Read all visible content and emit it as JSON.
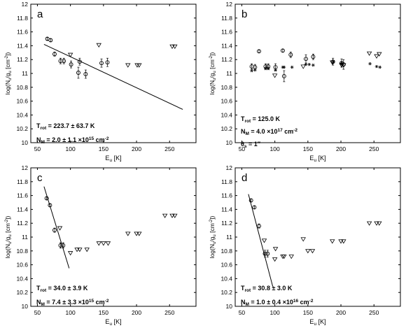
{
  "chart_data": [
    {
      "type": "scatter",
      "panel_label": "a",
      "xlabel": "E_u [K]",
      "ylabel": "log(N_u/g_u [cm^-2])",
      "xlim": [
        40,
        290
      ],
      "ylim": [
        10,
        12
      ],
      "x_ticks": [
        50,
        100,
        150,
        200,
        250
      ],
      "y_ticks": [
        10,
        10.2,
        10.4,
        10.6,
        10.8,
        11,
        11.2,
        11.4,
        11.6,
        11.8,
        12
      ],
      "series": [
        {
          "marker": "circle",
          "points": [
            {
              "x": 65,
              "y": 11.5,
              "err": 0.02
            },
            {
              "x": 70,
              "y": 11.48,
              "err": 0.02
            },
            {
              "x": 76,
              "y": 11.28,
              "err": 0.03
            },
            {
              "x": 85,
              "y": 11.18,
              "err": 0.04
            },
            {
              "x": 90,
              "y": 11.18,
              "err": 0.04
            },
            {
              "x": 101,
              "y": 11.13,
              "err": 0.05
            },
            {
              "x": 112,
              "y": 11.01,
              "err": 0.08
            },
            {
              "x": 114,
              "y": 11.17,
              "err": 0.05
            },
            {
              "x": 123,
              "y": 10.99,
              "err": 0.06
            },
            {
              "x": 147,
              "y": 11.15,
              "err": 0.06
            },
            {
              "x": 156,
              "y": 11.16,
              "err": 0.06
            }
          ]
        },
        {
          "marker": "triangle-down",
          "points": [
            {
              "x": 100,
              "y": 11.27
            },
            {
              "x": 143,
              "y": 11.41
            },
            {
              "x": 187,
              "y": 11.12
            },
            {
              "x": 201,
              "y": 11.12
            },
            {
              "x": 204,
              "y": 11.12
            },
            {
              "x": 254,
              "y": 11.39
            },
            {
              "x": 258,
              "y": 11.39
            }
          ]
        }
      ],
      "fit_line": {
        "x": [
          60,
          270
        ],
        "y": [
          11.42,
          10.48
        ]
      },
      "annotation": [
        {
          "label": "T",
          "sub": "rot",
          "value": " = 223.7 ± 63.7 K"
        },
        {
          "label": "N",
          "sub": "M",
          "value": " = 2.0 ± 1.1 ×10",
          "sup": "15",
          "unit": " cm",
          "unit_sup": "-2"
        }
      ]
    },
    {
      "type": "scatter",
      "panel_label": "b",
      "xlabel": "E_u [K]",
      "ylabel": "log(N_u/g_u [cm^-2])",
      "xlim": [
        40,
        290
      ],
      "ylim": [
        10,
        12
      ],
      "x_ticks": [
        50,
        100,
        150,
        200,
        250
      ],
      "y_ticks": [
        10,
        10.2,
        10.4,
        10.6,
        10.8,
        11,
        11.2,
        11.4,
        11.6,
        11.8,
        12
      ],
      "series": [
        {
          "marker": "circle",
          "points": [
            {
              "x": 65,
              "y": 11.1,
              "err": 0.04
            },
            {
              "x": 70,
              "y": 11.09,
              "err": 0.04
            },
            {
              "x": 76,
              "y": 11.32,
              "err": 0.02
            },
            {
              "x": 86,
              "y": 11.1,
              "err": 0.04
            },
            {
              "x": 90,
              "y": 11.1,
              "err": 0.04
            },
            {
              "x": 101,
              "y": 11.09,
              "err": 0.05
            },
            {
              "x": 112,
              "y": 11.33,
              "err": 0.02
            },
            {
              "x": 114,
              "y": 10.96,
              "err": 0.08
            },
            {
              "x": 124,
              "y": 11.27,
              "err": 0.04
            },
            {
              "x": 147,
              "y": 11.21,
              "err": 0.06
            },
            {
              "x": 158,
              "y": 11.24,
              "err": 0.04
            },
            {
              "x": 188,
              "y": 11.17,
              "err": 0.05
            },
            {
              "x": 201,
              "y": 11.15,
              "err": 0.06
            },
            {
              "x": 204,
              "y": 11.13,
              "err": 0.07
            }
          ]
        },
        {
          "marker": "triangle-down",
          "points": [
            {
              "x": 100,
              "y": 10.97
            },
            {
              "x": 143,
              "y": 11.1
            },
            {
              "x": 187,
              "y": 11.16
            },
            {
              "x": 201,
              "y": 11.12
            },
            {
              "x": 204,
              "y": 11.12
            },
            {
              "x": 243,
              "y": 11.29
            },
            {
              "x": 254,
              "y": 11.25
            },
            {
              "x": 258,
              "y": 11.28
            }
          ]
        },
        {
          "marker": "star",
          "points": [
            {
              "x": 65,
              "y": 11.04
            },
            {
              "x": 70,
              "y": 11.05
            },
            {
              "x": 86,
              "y": 11.07
            },
            {
              "x": 90,
              "y": 11.07
            },
            {
              "x": 101,
              "y": 11.05
            },
            {
              "x": 112,
              "y": 11.09
            },
            {
              "x": 114,
              "y": 11.09
            },
            {
              "x": 126,
              "y": 11.09
            },
            {
              "x": 147,
              "y": 11.13
            },
            {
              "x": 152,
              "y": 11.13
            },
            {
              "x": 158,
              "y": 11.12
            },
            {
              "x": 188,
              "y": 11.16
            },
            {
              "x": 201,
              "y": 11.15
            },
            {
              "x": 244,
              "y": 11.14
            },
            {
              "x": 254,
              "y": 11.1
            },
            {
              "x": 259,
              "y": 11.09
            }
          ]
        }
      ],
      "annotation": [
        {
          "label": "T",
          "sub": "rot",
          "value": " = 125.0 K"
        },
        {
          "label": "N",
          "sub": "M",
          "value": " = 4.0 ×10",
          "sup": "17",
          "unit": " cm",
          "unit_sup": "-2"
        },
        {
          "label": "θ",
          "sub": "s",
          "value": " = 1′′"
        }
      ]
    },
    {
      "type": "scatter",
      "panel_label": "c",
      "xlabel": "E_u [K]",
      "ylabel": "log(N_u/g_u [cm^-2])",
      "xlim": [
        40,
        290
      ],
      "ylim": [
        10,
        12
      ],
      "x_ticks": [
        50,
        100,
        150,
        200,
        250
      ],
      "y_ticks": [
        10,
        10.2,
        10.4,
        10.6,
        10.8,
        11,
        11.2,
        11.4,
        11.6,
        11.8,
        12
      ],
      "series": [
        {
          "marker": "circle",
          "points": [
            {
              "x": 64,
              "y": 11.56,
              "err": 0.02
            },
            {
              "x": 69,
              "y": 11.46,
              "err": 0.02
            },
            {
              "x": 76,
              "y": 11.1,
              "err": 0.03
            },
            {
              "x": 85,
              "y": 10.88,
              "err": 0.04
            },
            {
              "x": 89,
              "y": 10.88,
              "err": 0.04
            }
          ]
        },
        {
          "marker": "triangle-down",
          "points": [
            {
              "x": 84,
              "y": 11.13
            },
            {
              "x": 100,
              "y": 10.77
            },
            {
              "x": 110,
              "y": 10.82
            },
            {
              "x": 114,
              "y": 10.82
            },
            {
              "x": 125,
              "y": 10.82
            },
            {
              "x": 143,
              "y": 10.91
            },
            {
              "x": 150,
              "y": 10.91
            },
            {
              "x": 157,
              "y": 10.91
            },
            {
              "x": 187,
              "y": 11.05
            },
            {
              "x": 200,
              "y": 11.05
            },
            {
              "x": 204,
              "y": 11.05
            },
            {
              "x": 243,
              "y": 11.31
            },
            {
              "x": 254,
              "y": 11.31
            },
            {
              "x": 258,
              "y": 11.31
            }
          ]
        }
      ],
      "fit_line": {
        "x": [
          60,
          98
        ],
        "y": [
          11.73,
          10.55
        ]
      },
      "annotation": [
        {
          "label": "T",
          "sub": "rot",
          "value": " = 34.0 ± 3.9 K"
        },
        {
          "label": "N",
          "sub": "M",
          "value": " = 7.4 ± 3.3 ×10",
          "sup": "15",
          "unit": " cm",
          "unit_sup": "-2"
        }
      ]
    },
    {
      "type": "scatter",
      "panel_label": "d",
      "xlabel": "E_u [K]",
      "ylabel": "log(N_u/g_u [cm^-2])",
      "xlim": [
        40,
        290
      ],
      "ylim": [
        10,
        12
      ],
      "x_ticks": [
        50,
        100,
        150,
        200,
        250
      ],
      "y_ticks": [
        10,
        10.2,
        10.4,
        10.6,
        10.8,
        11,
        11.2,
        11.4,
        11.6,
        11.8,
        12
      ],
      "series": [
        {
          "marker": "circle",
          "points": [
            {
              "x": 64,
              "y": 11.53,
              "err": 0.02
            },
            {
              "x": 69,
              "y": 11.43,
              "err": 0.02
            },
            {
              "x": 76,
              "y": 11.16,
              "err": 0.03
            },
            {
              "x": 85,
              "y": 10.76,
              "err": 0.05
            },
            {
              "x": 89,
              "y": 10.76,
              "err": 0.05
            }
          ]
        },
        {
          "marker": "triangle-down",
          "points": [
            {
              "x": 84,
              "y": 10.95
            },
            {
              "x": 100,
              "y": 10.68
            },
            {
              "x": 101,
              "y": 10.83
            },
            {
              "x": 112,
              "y": 10.72
            },
            {
              "x": 114,
              "y": 10.72
            },
            {
              "x": 125,
              "y": 10.72
            },
            {
              "x": 143,
              "y": 10.97
            },
            {
              "x": 150,
              "y": 10.8
            },
            {
              "x": 157,
              "y": 10.8
            },
            {
              "x": 187,
              "y": 10.94
            },
            {
              "x": 200,
              "y": 10.94
            },
            {
              "x": 204,
              "y": 10.94
            },
            {
              "x": 243,
              "y": 11.2
            },
            {
              "x": 254,
              "y": 11.2
            },
            {
              "x": 258,
              "y": 11.2
            }
          ]
        }
      ],
      "fit_line": {
        "x": [
          60,
          97
        ],
        "y": [
          11.62,
          10.28
        ]
      },
      "annotation": [
        {
          "label": "T",
          "sub": "rot",
          "value": " = 30.8 ± 3.0 K"
        },
        {
          "label": "N",
          "sub": "M",
          "value": " = 1.0 ± 0.4 ×10",
          "sup": "16",
          "unit": " cm",
          "unit_sup": "-2"
        }
      ]
    }
  ]
}
